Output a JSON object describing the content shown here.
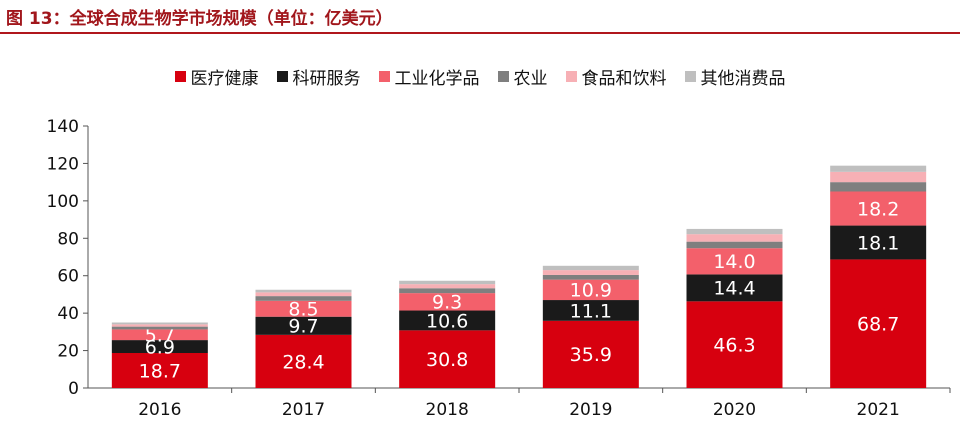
{
  "title": "图 13：全球合成生物学市场规模（单位：亿美元）",
  "colors": {
    "title": "#a1161b",
    "rule": "#b0161c",
    "healthcare": "#d7000f",
    "research": "#1a1a1a",
    "industrial": "#f3606b",
    "agriculture": "#7f7f7f",
    "food": "#f7b0b5",
    "consumer": "#bfbfbf"
  },
  "chart_data": {
    "type": "bar",
    "stacked": true,
    "categories": [
      "2016",
      "2017",
      "2018",
      "2019",
      "2020",
      "2021"
    ],
    "ylim": [
      0,
      140
    ],
    "yticks": [
      0,
      20,
      40,
      60,
      80,
      100,
      120,
      140
    ],
    "grid": false,
    "legend_position": "top",
    "series": [
      {
        "name": "医疗健康",
        "color_key": "healthcare",
        "label_color": "#ffffff",
        "values": [
          18.7,
          28.4,
          30.8,
          35.9,
          46.3,
          68.7
        ],
        "labels": [
          "18.7",
          "28.4",
          "30.8",
          "35.9",
          "46.3",
          "68.7"
        ]
      },
      {
        "name": "科研服务",
        "color_key": "research",
        "label_color": "#ffffff",
        "values": [
          6.9,
          9.7,
          10.6,
          11.1,
          14.4,
          18.1
        ],
        "labels": [
          "6.9",
          "9.7",
          "10.6",
          "11.1",
          "14.4",
          "18.1"
        ]
      },
      {
        "name": "工业化学品",
        "color_key": "industrial",
        "label_color": "#ffffff",
        "values": [
          5.7,
          8.5,
          9.3,
          10.9,
          14.0,
          18.2
        ],
        "labels": [
          "5.7",
          "8.5",
          "9.3",
          "10.9",
          "14.0",
          "18.2"
        ]
      },
      {
        "name": "农业",
        "color_key": "agriculture",
        "label_color": "#ffffff",
        "values": [
          1.5,
          2.5,
          2.6,
          2.5,
          3.5,
          5.0
        ],
        "labels": [
          "",
          "",
          "",
          "",
          "",
          ""
        ]
      },
      {
        "name": "食品和饮料",
        "color_key": "food",
        "label_color": "#ffffff",
        "values": [
          1.2,
          2.0,
          2.2,
          2.6,
          4.0,
          5.5
        ],
        "labels": [
          "",
          "",
          "",
          "",
          "",
          ""
        ]
      },
      {
        "name": "其他消费品",
        "color_key": "consumer",
        "label_color": "#ffffff",
        "values": [
          1.0,
          1.4,
          1.8,
          2.3,
          2.8,
          3.3
        ],
        "labels": [
          "",
          "",
          "",
          "",
          "",
          ""
        ]
      }
    ]
  }
}
